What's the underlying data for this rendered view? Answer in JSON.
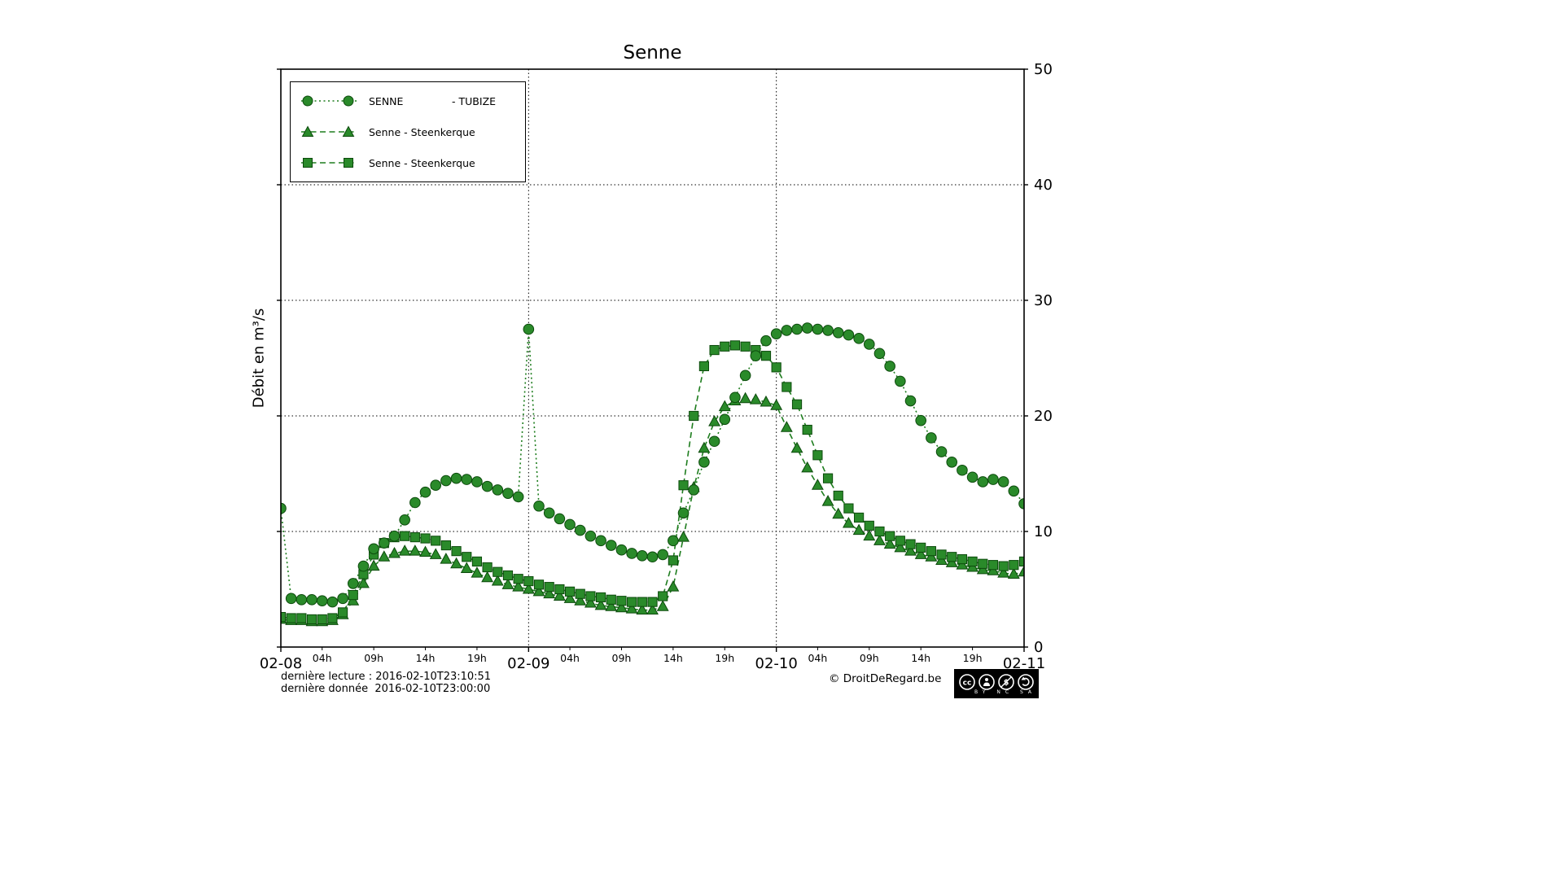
{
  "title": "Senne",
  "ylabel": "Débit en m³/s",
  "legend": [
    {
      "label": "SENNE               - TUBIZE",
      "marker": "circle"
    },
    {
      "label": "Senne - Steenkerque",
      "marker": "triangle"
    },
    {
      "label": "Senne - Steenkerque",
      "marker": "square"
    }
  ],
  "footer": {
    "line1": "dernière lecture : 2016-02-10T23:10:51",
    "line2": "dernière donnée  2016-02-10T23:00:00",
    "copyright": "© DroitDeRegard.be",
    "license": "BY NC SA"
  },
  "colors": {
    "line": "#1e7d1e",
    "marker_fill": "#2a8a2a",
    "marker_edge": "#0c4a0c",
    "grid": "#000000"
  },
  "chart_data": {
    "type": "line",
    "title": "Senne",
    "ylabel": "Débit en m³/s",
    "x_unit": "hours since 2016-02-08 00:00",
    "xlim": [
      0,
      72
    ],
    "ylim": [
      0,
      50
    ],
    "y_ticks": [
      0,
      10,
      20,
      30,
      40,
      50
    ],
    "x_major_ticks": [
      {
        "t": 0,
        "label": "02-08"
      },
      {
        "t": 24,
        "label": "02-09"
      },
      {
        "t": 48,
        "label": "02-10"
      },
      {
        "t": 72,
        "label": "02-11"
      }
    ],
    "x_minor_tick_hours": [
      4,
      9,
      14,
      19
    ],
    "x_minor_labels": [
      "04h",
      "09h",
      "14h",
      "19h"
    ],
    "grid": "dotted",
    "legend_position": "upper-left",
    "series": [
      {
        "name": "SENNE - TUBIZE",
        "marker": "circle",
        "dash": "dotted",
        "values": [
          12.0,
          4.2,
          4.1,
          4.1,
          4.0,
          3.9,
          4.2,
          5.5,
          7.0,
          8.5,
          9.0,
          9.6,
          11.0,
          12.5,
          13.4,
          14.0,
          14.4,
          14.6,
          14.5,
          14.3,
          13.9,
          13.6,
          13.3,
          13.0,
          27.5,
          12.2,
          11.6,
          11.1,
          10.6,
          10.1,
          9.6,
          9.2,
          8.8,
          8.4,
          8.1,
          7.9,
          7.8,
          8.0,
          9.2,
          11.6,
          13.6,
          16.0,
          17.8,
          19.7,
          21.6,
          23.5,
          25.2,
          26.5,
          27.1,
          27.4,
          27.5,
          27.6,
          27.5,
          27.4,
          27.2,
          27.0,
          26.7,
          26.2,
          25.4,
          24.3,
          23.0,
          21.3,
          19.6,
          18.1,
          16.9,
          16.0,
          15.3,
          14.7,
          14.3,
          14.5,
          14.3,
          13.5,
          12.4
        ]
      },
      {
        "name": "Senne - Steenkerque",
        "marker": "triangle",
        "dash": "dashed",
        "values": [
          2.4,
          2.3,
          2.3,
          2.2,
          2.2,
          2.3,
          2.8,
          4.0,
          5.5,
          7.0,
          7.8,
          8.1,
          8.3,
          8.3,
          8.2,
          8.0,
          7.6,
          7.2,
          6.8,
          6.4,
          6.0,
          5.7,
          5.4,
          5.2,
          5.0,
          4.8,
          4.6,
          4.4,
          4.2,
          4.0,
          3.8,
          3.6,
          3.5,
          3.4,
          3.3,
          3.2,
          3.2,
          3.5,
          5.2,
          9.5,
          13.8,
          17.2,
          19.5,
          20.8,
          21.3,
          21.5,
          21.4,
          21.2,
          20.9,
          19.0,
          17.2,
          15.5,
          14.0,
          12.6,
          11.5,
          10.7,
          10.1,
          9.6,
          9.2,
          8.9,
          8.6,
          8.3,
          8.0,
          7.8,
          7.5,
          7.3,
          7.1,
          6.9,
          6.7,
          6.6,
          6.4,
          6.3,
          6.5
        ]
      },
      {
        "name": "Senne - Steenkerque",
        "marker": "square",
        "dash": "dashed",
        "values": [
          2.6,
          2.5,
          2.5,
          2.4,
          2.4,
          2.5,
          3.0,
          4.5,
          6.3,
          8.0,
          9.0,
          9.5,
          9.6,
          9.5,
          9.4,
          9.2,
          8.8,
          8.3,
          7.8,
          7.4,
          6.9,
          6.5,
          6.2,
          5.9,
          5.7,
          5.4,
          5.2,
          5.0,
          4.8,
          4.6,
          4.4,
          4.3,
          4.1,
          4.0,
          3.9,
          3.9,
          3.9,
          4.4,
          7.5,
          14.0,
          20.0,
          24.3,
          25.7,
          26.0,
          26.1,
          26.0,
          25.7,
          25.2,
          24.2,
          22.5,
          21.0,
          18.8,
          16.6,
          14.6,
          13.1,
          12.0,
          11.2,
          10.5,
          10.0,
          9.6,
          9.2,
          8.9,
          8.6,
          8.3,
          8.0,
          7.8,
          7.6,
          7.4,
          7.2,
          7.1,
          7.0,
          7.1,
          7.4
        ]
      }
    ]
  }
}
